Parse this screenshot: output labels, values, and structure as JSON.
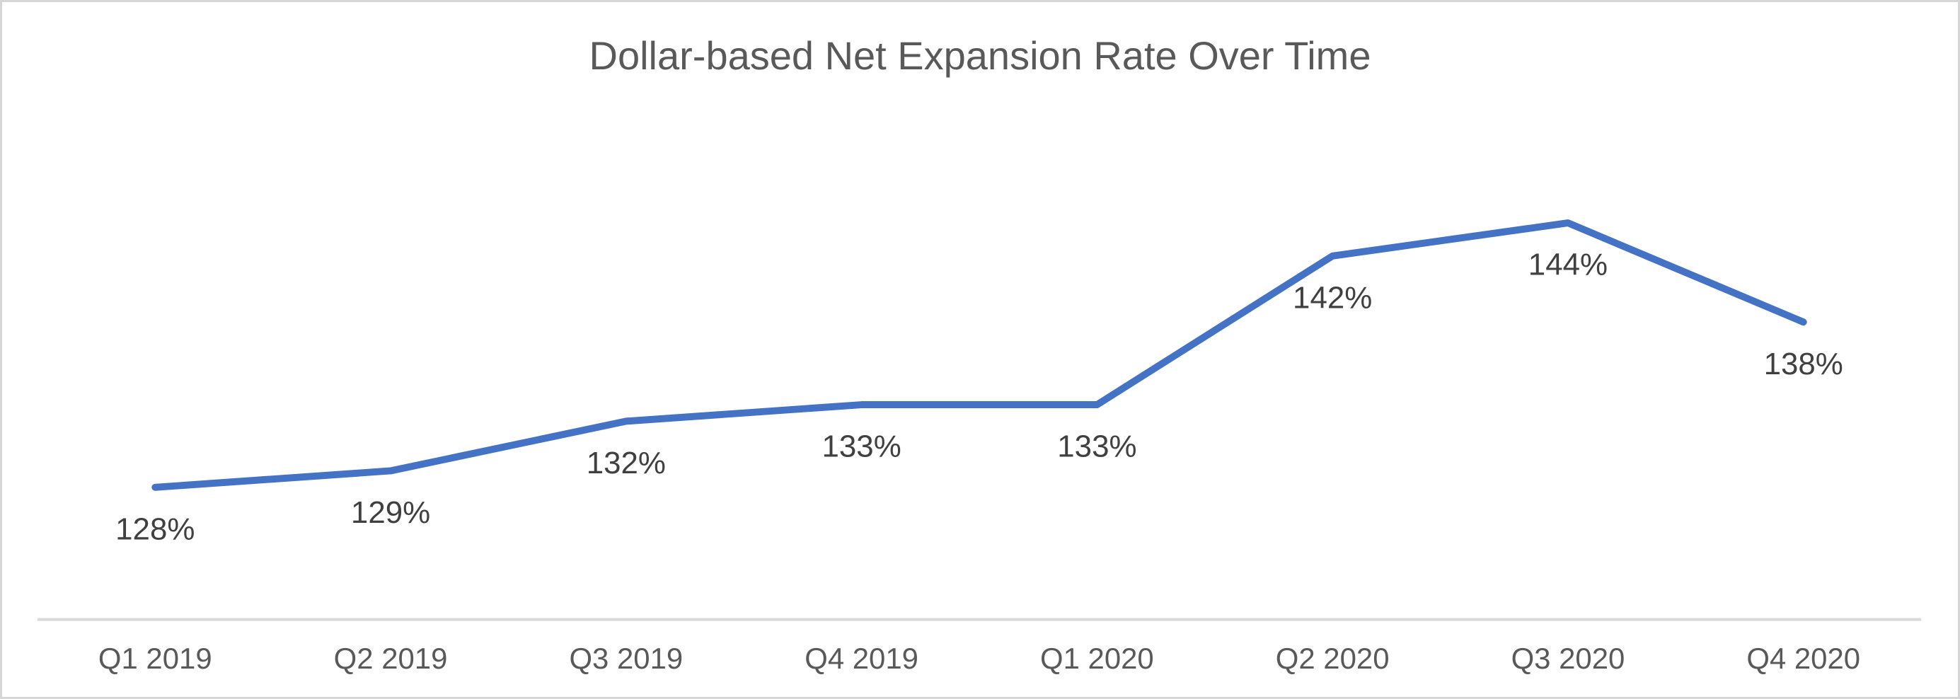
{
  "chart_data": {
    "type": "line",
    "title": "Dollar-based Net Expansion Rate Over Time",
    "categories": [
      "Q1 2019",
      "Q2 2019",
      "Q3 2019",
      "Q4 2019",
      "Q1 2020",
      "Q2 2020",
      "Q3 2020",
      "Q4 2020"
    ],
    "series": [
      {
        "name": "Dollar-based Net Expansion Rate",
        "values": [
          128,
          129,
          132,
          133,
          133,
          142,
          144,
          138
        ],
        "data_labels": [
          "128%",
          "129%",
          "132%",
          "133%",
          "133%",
          "142%",
          "144%",
          "138%"
        ]
      }
    ],
    "xlabel": "",
    "ylabel": "",
    "ylim": [
      120,
      150
    ],
    "y_axis_visible": false,
    "grid": false,
    "legend": "none",
    "colors": {
      "line": "#4472C4",
      "axis_line": "#d9d9d9",
      "title_text": "#595959",
      "data_label_text": "#404040",
      "axis_label_text": "#595959",
      "background": "#ffffff",
      "frame_border": "#d6d6d6"
    }
  }
}
